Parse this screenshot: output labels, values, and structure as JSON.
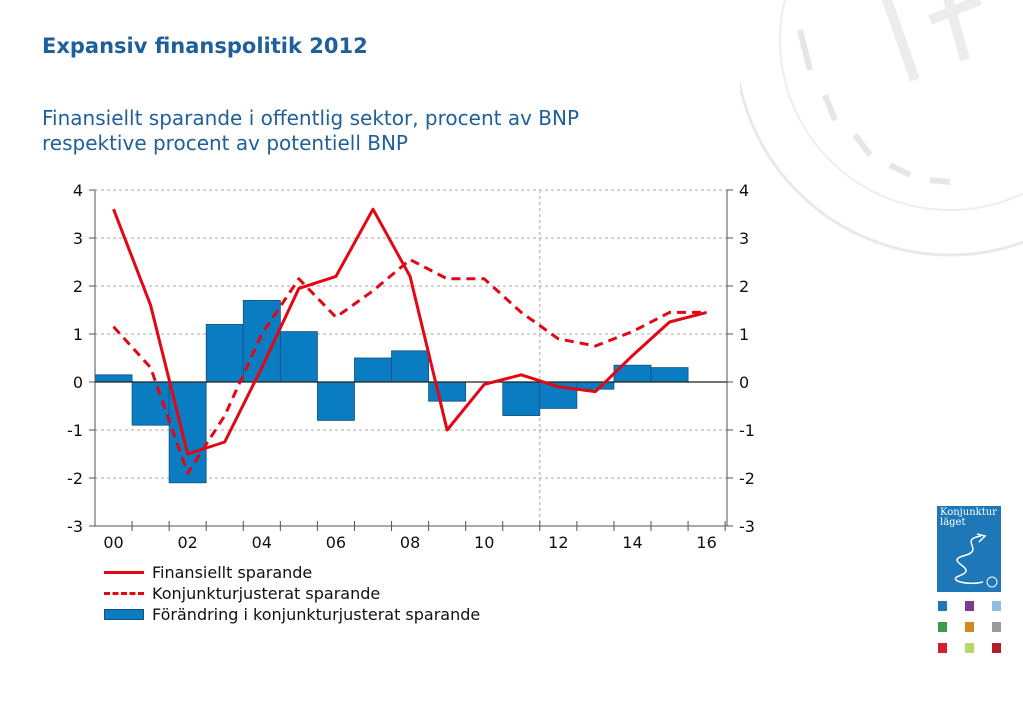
{
  "slide_title": "Expansiv finanspolitik 2012",
  "report_logo_text": "Konjunktur läget",
  "thumbnail_colors": [
    "#1e78b8",
    "#7a3c8c",
    "#8fbce0",
    "#3e9a47",
    "#d18a1a",
    "#9a9a9a",
    "#d2202e",
    "#b6d96a",
    "#b01e2a"
  ],
  "colors": {
    "line": "#e30613",
    "bar": "#0a7cc1",
    "bar_stroke": "#1a4f7a",
    "title": "#1f5f9a"
  },
  "chart_data": {
    "type": "bar+line",
    "title_lines": [
      "Finansiellt sparande i offentlig sektor, procent av BNP",
      "respektive procent av potentiell BNP"
    ],
    "categories": [
      "00",
      "01",
      "02",
      "03",
      "04",
      "05",
      "06",
      "07",
      "08",
      "09",
      "10",
      "11",
      "12",
      "13",
      "14",
      "15",
      "16"
    ],
    "x_tick_labels": [
      "00",
      "02",
      "04",
      "06",
      "08",
      "10",
      "12",
      "14",
      "16"
    ],
    "ylim": [
      -3,
      4
    ],
    "y_ticks": [
      4,
      3,
      2,
      1,
      0,
      -1,
      -2,
      -3
    ],
    "y_tick_labels": [
      "4",
      "3",
      "2",
      "1",
      "0",
      "-1",
      "-2",
      "-3"
    ],
    "grid": true,
    "forecast_divider_after": "11",
    "series": [
      {
        "name": "Finansiellt sparande",
        "kind": "line-solid",
        "values": [
          3.6,
          1.6,
          -1.5,
          -1.25,
          0.3,
          1.95,
          2.2,
          3.6,
          2.2,
          -1.0,
          -0.05,
          0.15,
          -0.1,
          -0.2,
          0.55,
          1.25,
          1.45
        ]
      },
      {
        "name": "Konjunkturjusterat sparande",
        "kind": "line-dashed",
        "values": [
          1.15,
          0.3,
          -1.9,
          -0.7,
          1.0,
          2.15,
          1.35,
          1.9,
          2.55,
          2.15,
          2.15,
          1.45,
          0.9,
          0.75,
          1.05,
          1.45,
          1.45
        ]
      },
      {
        "name": "Förändring i konjunkturjusterat sparande",
        "kind": "bar",
        "values": [
          0.15,
          -0.9,
          -2.1,
          1.2,
          1.7,
          1.05,
          -0.8,
          0.5,
          0.65,
          -0.4,
          null,
          -0.7,
          -0.55,
          -0.15,
          0.35,
          0.3,
          null
        ]
      }
    ],
    "legend_position": "bottom-left"
  }
}
